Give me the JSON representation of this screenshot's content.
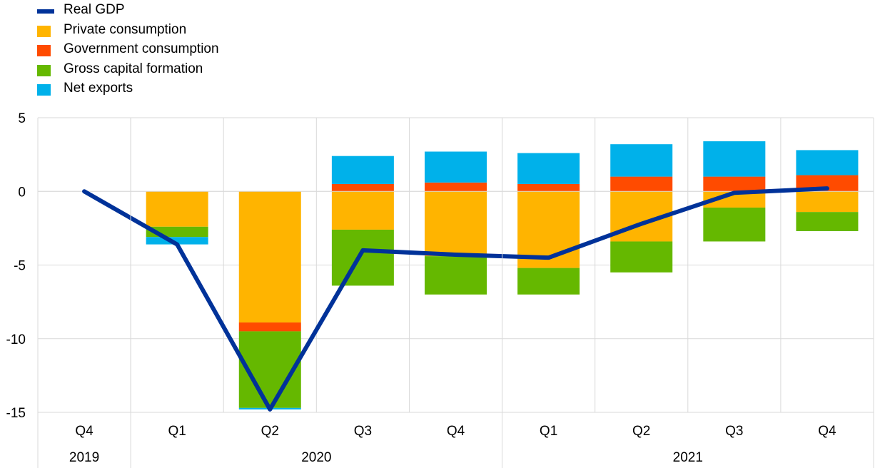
{
  "chart_data": {
    "type": "bar",
    "stacked": true,
    "categories": [
      "Q4",
      "Q1",
      "Q2",
      "Q3",
      "Q4",
      "Q1",
      "Q2",
      "Q3",
      "Q4"
    ],
    "year_groups": [
      {
        "label": "2019",
        "span": 1
      },
      {
        "label": "2020",
        "span": 4
      },
      {
        "label": "2021",
        "span": 4
      }
    ],
    "ylim": [
      -15,
      5
    ],
    "yticks": [
      5,
      0,
      -5,
      -10,
      -15
    ],
    "grid": true,
    "legend_position": "top-left",
    "series": [
      {
        "name": "Private consumption",
        "color": "#FFB400",
        "kind": "bar",
        "values": [
          null,
          -2.4,
          -8.9,
          -2.6,
          -4.4,
          -5.2,
          -3.4,
          -1.1,
          -1.4
        ]
      },
      {
        "name": "Government consumption",
        "color": "#FF4B00",
        "kind": "bar",
        "values": [
          null,
          0,
          -0.6,
          0.5,
          0.6,
          0.5,
          1.0,
          1.0,
          1.1
        ]
      },
      {
        "name": "Gross capital formation",
        "color": "#65B800",
        "kind": "bar",
        "values": [
          null,
          -0.7,
          -5.2,
          -3.8,
          -2.6,
          -1.8,
          -2.1,
          -2.3,
          -1.3
        ]
      },
      {
        "name": "Net exports",
        "color": "#00B1EA",
        "kind": "bar",
        "values": [
          null,
          -0.5,
          -0.1,
          1.9,
          2.1,
          2.1,
          2.2,
          2.4,
          1.7
        ]
      },
      {
        "name": "Real GDP",
        "color": "#003299",
        "kind": "line",
        "values": [
          0.0,
          -3.6,
          -14.8,
          -4.0,
          -4.3,
          -4.5,
          -2.2,
          -0.1,
          0.2
        ]
      }
    ]
  }
}
